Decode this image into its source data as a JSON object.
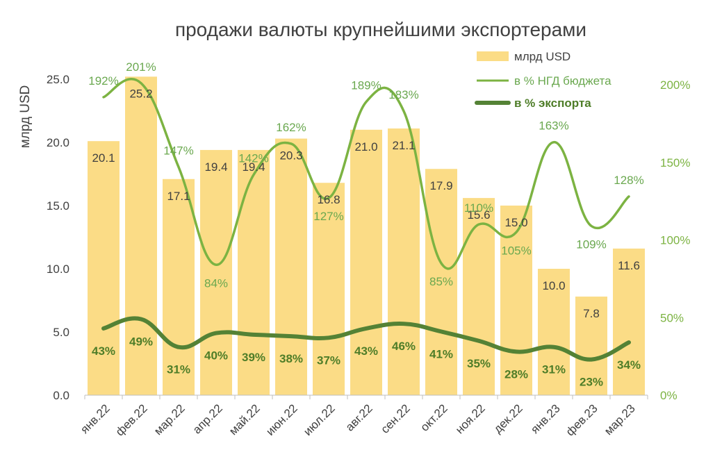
{
  "chart_data": {
    "type": "bar+line",
    "title": "продажи валюты крупнейшими экспортерами",
    "categories": [
      "янв.22",
      "фев.22",
      "мар.22",
      "апр.22",
      "май.22",
      "июн.22",
      "июл.22",
      "авг.22",
      "сен.22",
      "окт.22",
      "ноя.22",
      "дек.22",
      "янв.23",
      "фев.23",
      "мар.23"
    ],
    "ylabel": "млрд USD",
    "ylim": [
      0,
      25
    ],
    "yticks": [
      "0.0",
      "5.0",
      "10.0",
      "15.0",
      "20.0",
      "25.0"
    ],
    "y2lim": [
      0,
      200
    ],
    "y2ticks": [
      "0%",
      "50%",
      "100%",
      "150%",
      "200%"
    ],
    "series": [
      {
        "name": "млрд USD",
        "type": "bar",
        "color": "#fbdc86",
        "values": [
          20.1,
          25.2,
          17.1,
          19.4,
          19.4,
          20.3,
          16.8,
          21.0,
          21.1,
          17.9,
          15.6,
          15.0,
          10.0,
          7.8,
          11.6
        ],
        "labels": [
          "20.1",
          "25.2",
          "17.1",
          "19.4",
          "19.4",
          "20.3",
          "16.8",
          "21.0",
          "21.1",
          "17.9",
          "15.6",
          "15.0",
          "10.0",
          "7.8",
          "11.6"
        ]
      },
      {
        "name": "в % НГД бюджета",
        "type": "line",
        "axis": "right",
        "color": "#7cb342",
        "values": [
          192,
          201,
          147,
          84,
          142,
          162,
          127,
          189,
          183,
          85,
          110,
          105,
          163,
          109,
          128
        ],
        "labels": [
          "192%",
          "201%",
          "147%",
          "84%",
          "142%",
          "162%",
          "127%",
          "189%",
          "183%",
          "85%",
          "110%",
          "105%",
          "163%",
          "109%",
          "128%"
        ]
      },
      {
        "name": "в % экспорта",
        "type": "line",
        "axis": "right",
        "color": "#548235",
        "values": [
          43,
          49,
          31,
          40,
          39,
          38,
          37,
          43,
          46,
          41,
          35,
          28,
          31,
          23,
          34
        ],
        "labels": [
          "43%",
          "49%",
          "31%",
          "40%",
          "39%",
          "38%",
          "37%",
          "43%",
          "46%",
          "41%",
          "35%",
          "28%",
          "31%",
          "23%",
          "34%"
        ]
      }
    ],
    "legend": "top-right"
  }
}
